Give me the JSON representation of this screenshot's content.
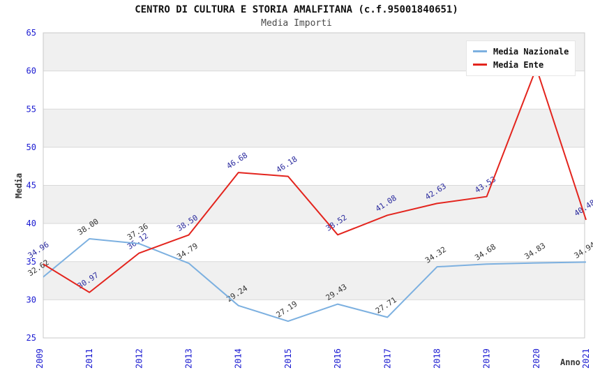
{
  "chart_data": {
    "type": "line",
    "title": "CENTRO DI CULTURA E STORIA AMALFITANA (c.f.95001840651)",
    "subtitle": "Media Importi",
    "xlabel": "Anno",
    "ylabel": "Media",
    "categories": [
      "2009",
      "2011",
      "2012",
      "2013",
      "2014",
      "2015",
      "2016",
      "2017",
      "2018",
      "2019",
      "2020",
      "2021"
    ],
    "ylim": [
      25,
      65
    ],
    "yticks": [
      65,
      60,
      55,
      50,
      45,
      40,
      35,
      30,
      25
    ],
    "grid": "horizontal-bands-alternating",
    "legend_position": "top-right",
    "colors": {
      "axis_tick_label": "#1a1ad1",
      "grid_line": "#d9d9d9",
      "band_fill": "#f0f0f0",
      "plot_border": "#c9c9c9"
    },
    "series": [
      {
        "name": "Media Nazionale",
        "color": "#7cb0e0",
        "label_color": "#333333",
        "values": [
          32.62,
          38.0,
          37.36,
          34.79,
          29.24,
          27.19,
          29.43,
          27.71,
          34.32,
          34.68,
          34.83,
          34.94
        ],
        "point_labels": [
          "32.62",
          "38.00",
          "37.36",
          "34.79",
          "29.24",
          "27.19",
          "29.43",
          "27.71",
          "34.32",
          "34.68",
          "34.83",
          "34.94"
        ]
      },
      {
        "name": "Media Ente",
        "color": "#e3241d",
        "label_color": "#2a2a9e",
        "values": [
          34.96,
          30.97,
          36.12,
          38.5,
          46.68,
          46.18,
          38.52,
          41.08,
          42.63,
          43.53,
          60.4,
          40.48
        ],
        "point_labels": [
          "34.96",
          "30.97",
          "36.12",
          "38.50",
          "46.68",
          "46.18",
          "38.52",
          "41.08",
          "42.63",
          "43.53",
          "",
          "40.48"
        ]
      }
    ]
  }
}
